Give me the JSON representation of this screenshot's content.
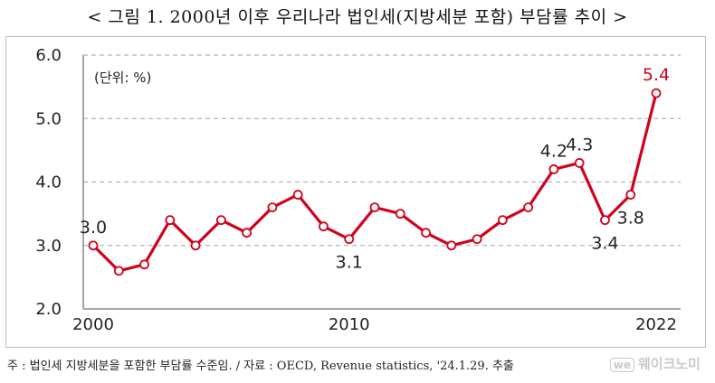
{
  "chart_data": {
    "type": "line",
    "title": "< 그림 1. 2000년 이후 우리나라 법인세(지방세분 포함) 부담률 추이 >",
    "unit_label": "(단위: %)",
    "x": [
      2000,
      2001,
      2002,
      2003,
      2004,
      2005,
      2006,
      2007,
      2008,
      2009,
      2010,
      2011,
      2012,
      2013,
      2014,
      2015,
      2016,
      2017,
      2018,
      2019,
      2020,
      2021,
      2022
    ],
    "series": [
      {
        "name": "법인세 부담률",
        "values": [
          3.0,
          2.6,
          2.7,
          3.4,
          3.0,
          3.4,
          3.2,
          3.6,
          3.8,
          3.3,
          3.1,
          3.6,
          3.5,
          3.2,
          3.0,
          3.1,
          3.4,
          3.6,
          4.2,
          4.3,
          3.4,
          3.8,
          5.4
        ],
        "color": "#d0021b"
      }
    ],
    "ylim": [
      2.0,
      6.0
    ],
    "yticks": [
      "2.0",
      "3.0",
      "4.0",
      "5.0",
      "6.0"
    ],
    "xticks": [
      {
        "value": 2000,
        "label": "2000"
      },
      {
        "value": 2010,
        "label": "2010"
      },
      {
        "value": 2022,
        "label": "2022"
      }
    ],
    "annotations": [
      {
        "year": 2000,
        "text": "3.0",
        "pos": "above",
        "color": "#222222"
      },
      {
        "year": 2010,
        "text": "3.1",
        "pos": "below",
        "color": "#222222"
      },
      {
        "year": 2018,
        "text": "4.2",
        "pos": "above",
        "color": "#222222"
      },
      {
        "year": 2019,
        "text": "4.3",
        "pos": "above",
        "color": "#222222"
      },
      {
        "year": 2020,
        "text": "3.4",
        "pos": "below",
        "color": "#222222"
      },
      {
        "year": 2021,
        "text": "3.8",
        "pos": "below",
        "color": "#222222"
      },
      {
        "year": 2022,
        "text": "5.4",
        "pos": "above",
        "color": "#d0021b"
      }
    ],
    "grid": "horizontal dashed"
  },
  "footnote": "주 : 법인세 지방세분을 포함한 부담률 수준임. / 자료 : OECD, Revenue statistics, '24.1.29. 추출",
  "watermark": {
    "icon": "we",
    "text": "웨이크노미"
  }
}
